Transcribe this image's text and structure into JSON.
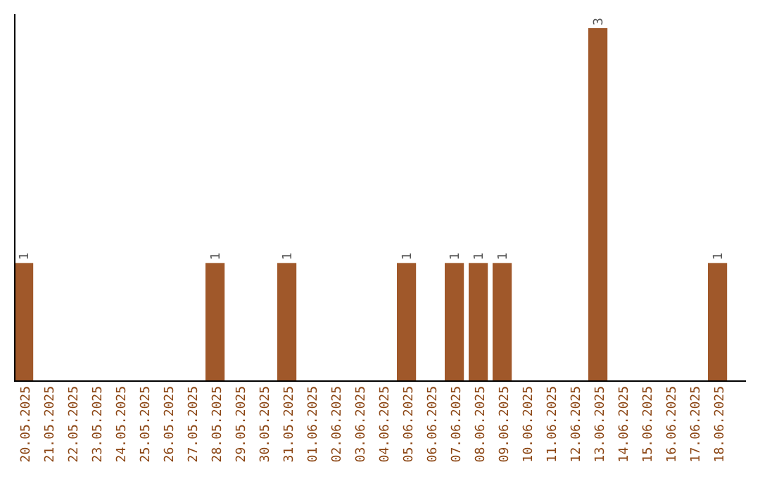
{
  "chart_data": {
    "type": "bar",
    "categories": [
      "20.05.2025",
      "21.05.2025",
      "22.05.2025",
      "23.05.2025",
      "24.05.2025",
      "25.05.2025",
      "26.05.2025",
      "27.05.2025",
      "28.05.2025",
      "29.05.2025",
      "30.05.2025",
      "31.05.2025",
      "01.06.2025",
      "02.06.2025",
      "03.06.2025",
      "04.06.2025",
      "05.06.2025",
      "06.06.2025",
      "07.06.2025",
      "08.06.2025",
      "09.06.2025",
      "10.06.2025",
      "11.06.2025",
      "12.06.2025",
      "13.06.2025",
      "14.06.2025",
      "15.06.2025",
      "16.06.2025",
      "17.06.2025",
      "18.06.2025"
    ],
    "values": [
      1,
      0,
      0,
      0,
      0,
      0,
      0,
      0,
      1,
      0,
      0,
      1,
      0,
      0,
      0,
      0,
      1,
      0,
      1,
      1,
      1,
      0,
      0,
      0,
      3,
      0,
      0,
      0,
      0,
      1
    ],
    "color": "#a0582a",
    "value_labels": [
      "1",
      null,
      null,
      null,
      null,
      null,
      null,
      null,
      "1",
      null,
      null,
      "1",
      null,
      null,
      null,
      null,
      "1",
      null,
      "1",
      "1",
      "1",
      null,
      null,
      null,
      "3",
      null,
      null,
      null,
      null,
      "1"
    ]
  }
}
